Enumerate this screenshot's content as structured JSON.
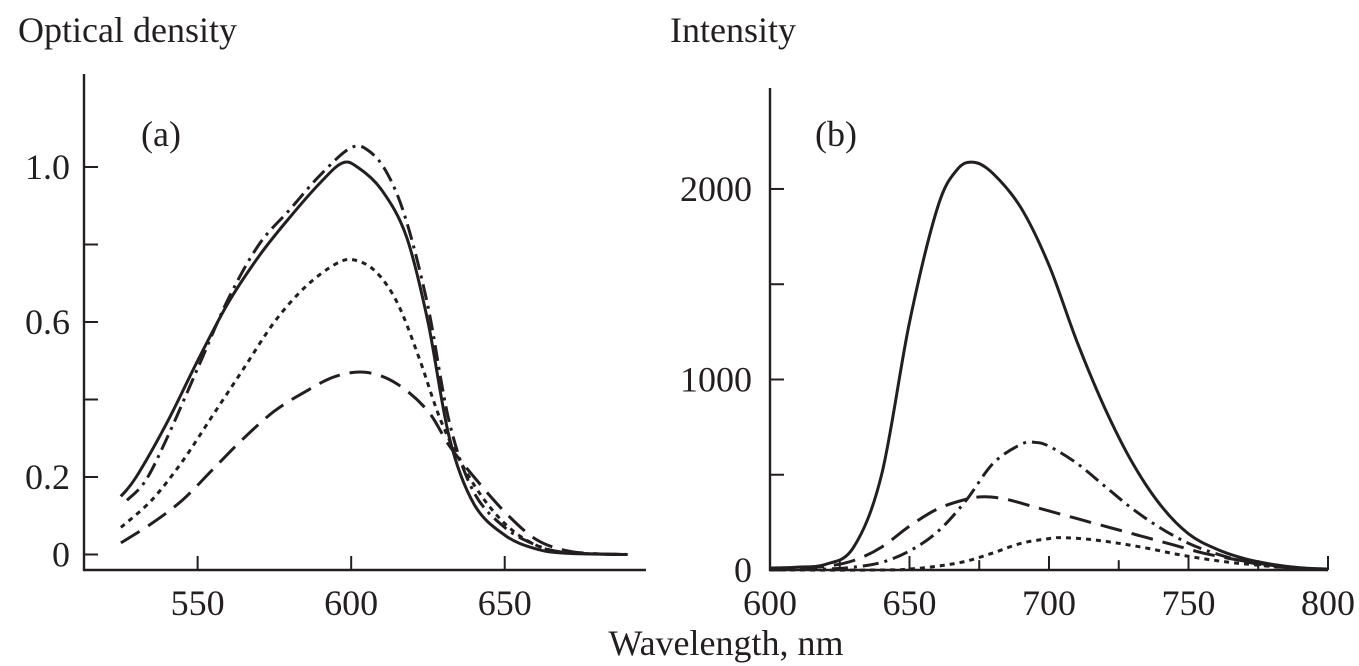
{
  "xlabel": "Wavelength, nm",
  "chart_data": [
    {
      "type": "line",
      "panel_label": "(a)",
      "title": "Optical density",
      "xlabel": "Wavelength, nm",
      "ylabel": "Optical density",
      "xlim": [
        513,
        696
      ],
      "ylim": [
        -0.04,
        1.24
      ],
      "xticks": [
        550,
        600,
        650
      ],
      "xtick_labels": [
        "550",
        "600",
        "650"
      ],
      "xminor": [],
      "yticks": [
        0,
        0.2,
        0.6,
        1.0
      ],
      "ytick_labels": [
        "0",
        "0.2",
        "0.6",
        "1.0"
      ],
      "yminor": [
        0.4,
        0.8
      ],
      "grid": false,
      "series": [
        {
          "style": "solid",
          "points": [
            [
              525,
              0.15
            ],
            [
              530,
              0.2
            ],
            [
              540,
              0.34
            ],
            [
              550,
              0.5
            ],
            [
              560,
              0.65
            ],
            [
              570,
              0.77
            ],
            [
              580,
              0.87
            ],
            [
              590,
              0.96
            ],
            [
              597,
              1.01
            ],
            [
              602,
              1.0
            ],
            [
              610,
              0.94
            ],
            [
              618,
              0.82
            ],
            [
              625,
              0.6
            ],
            [
              632,
              0.3
            ],
            [
              640,
              0.13
            ],
            [
              650,
              0.05
            ],
            [
              660,
              0.015
            ],
            [
              670,
              0.003
            ],
            [
              690,
              0.0
            ]
          ]
        },
        {
          "style": "dashdot",
          "points": [
            [
              527,
              0.14
            ],
            [
              533,
              0.19
            ],
            [
              540,
              0.3
            ],
            [
              550,
              0.48
            ],
            [
              560,
              0.66
            ],
            [
              570,
              0.8
            ],
            [
              580,
              0.89
            ],
            [
              590,
              0.98
            ],
            [
              600,
              1.05
            ],
            [
              606,
              1.04
            ],
            [
              612,
              0.98
            ],
            [
              618,
              0.86
            ],
            [
              625,
              0.64
            ],
            [
              632,
              0.34
            ],
            [
              640,
              0.16
            ],
            [
              650,
              0.07
            ],
            [
              660,
              0.025
            ],
            [
              670,
              0.005
            ],
            [
              690,
              0.0
            ]
          ]
        },
        {
          "style": "dotted",
          "points": [
            [
              525,
              0.07
            ],
            [
              535,
              0.14
            ],
            [
              545,
              0.24
            ],
            [
              555,
              0.36
            ],
            [
              565,
              0.48
            ],
            [
              575,
              0.6
            ],
            [
              585,
              0.69
            ],
            [
              595,
              0.75
            ],
            [
              601,
              0.76
            ],
            [
              608,
              0.73
            ],
            [
              615,
              0.65
            ],
            [
              622,
              0.51
            ],
            [
              630,
              0.33
            ],
            [
              640,
              0.18
            ],
            [
              650,
              0.08
            ],
            [
              660,
              0.025
            ],
            [
              670,
              0.005
            ],
            [
              690,
              0.0
            ]
          ]
        },
        {
          "style": "dashed",
          "points": [
            [
              525,
              0.03
            ],
            [
              535,
              0.08
            ],
            [
              545,
              0.14
            ],
            [
              555,
              0.22
            ],
            [
              565,
              0.3
            ],
            [
              575,
              0.37
            ],
            [
              585,
              0.42
            ],
            [
              595,
              0.46
            ],
            [
              605,
              0.47
            ],
            [
              615,
              0.44
            ],
            [
              625,
              0.37
            ],
            [
              632,
              0.28
            ],
            [
              640,
              0.2
            ],
            [
              650,
              0.11
            ],
            [
              660,
              0.04
            ],
            [
              670,
              0.01
            ],
            [
              680,
              0.002
            ],
            [
              690,
              0.0
            ]
          ]
        }
      ]
    },
    {
      "type": "line",
      "panel_label": "(b)",
      "title": "Intensity",
      "xlabel": "Wavelength, nm",
      "ylabel": "Intensity",
      "xlim": [
        600,
        800
      ],
      "ylim": [
        0,
        2530
      ],
      "xticks": [
        600,
        650,
        700,
        750,
        800
      ],
      "xtick_labels": [
        "600",
        "650",
        "700",
        "750",
        "800"
      ],
      "xminor": [
        625,
        675,
        725,
        775
      ],
      "yticks": [
        0,
        1000,
        2000
      ],
      "ytick_labels": [
        "0",
        "1000",
        "2000"
      ],
      "yminor": [
        500,
        1500
      ],
      "grid": false,
      "series": [
        {
          "style": "solid",
          "points": [
            [
              600,
              10
            ],
            [
              610,
              15
            ],
            [
              620,
              30
            ],
            [
              630,
              120
            ],
            [
              640,
              500
            ],
            [
              650,
              1300
            ],
            [
              660,
              1900
            ],
            [
              667,
              2100
            ],
            [
              673,
              2140
            ],
            [
              680,
              2080
            ],
            [
              690,
              1900
            ],
            [
              700,
              1600
            ],
            [
              710,
              1200
            ],
            [
              720,
              850
            ],
            [
              730,
              560
            ],
            [
              740,
              340
            ],
            [
              750,
              190
            ],
            [
              760,
              110
            ],
            [
              770,
              60
            ],
            [
              780,
              30
            ],
            [
              790,
              12
            ],
            [
              800,
              5
            ]
          ]
        },
        {
          "style": "dashdot",
          "points": [
            [
              600,
              0
            ],
            [
              620,
              5
            ],
            [
              630,
              15
            ],
            [
              640,
              40
            ],
            [
              650,
              100
            ],
            [
              660,
              200
            ],
            [
              670,
              360
            ],
            [
              680,
              560
            ],
            [
              690,
              660
            ],
            [
              695,
              670
            ],
            [
              700,
              650
            ],
            [
              710,
              560
            ],
            [
              720,
              440
            ],
            [
              730,
              320
            ],
            [
              740,
              220
            ],
            [
              750,
              140
            ],
            [
              760,
              85
            ],
            [
              770,
              45
            ],
            [
              780,
              20
            ],
            [
              790,
              8
            ],
            [
              800,
              3
            ]
          ]
        },
        {
          "style": "dashed",
          "points": [
            [
              600,
              0
            ],
            [
              620,
              20
            ],
            [
              630,
              50
            ],
            [
              640,
              120
            ],
            [
              650,
              230
            ],
            [
              660,
              320
            ],
            [
              670,
              370
            ],
            [
              677,
              385
            ],
            [
              685,
              370
            ],
            [
              695,
              330
            ],
            [
              705,
              290
            ],
            [
              715,
              250
            ],
            [
              725,
              210
            ],
            [
              735,
              170
            ],
            [
              745,
              130
            ],
            [
              755,
              90
            ],
            [
              765,
              60
            ],
            [
              775,
              35
            ],
            [
              785,
              15
            ],
            [
              795,
              5
            ],
            [
              800,
              2
            ]
          ]
        },
        {
          "style": "dotted",
          "points": [
            [
              600,
              0
            ],
            [
              640,
              0
            ],
            [
              650,
              5
            ],
            [
              660,
              20
            ],
            [
              670,
              45
            ],
            [
              680,
              90
            ],
            [
              690,
              140
            ],
            [
              700,
              165
            ],
            [
              705,
              170
            ],
            [
              715,
              160
            ],
            [
              725,
              140
            ],
            [
              735,
              115
            ],
            [
              745,
              85
            ],
            [
              755,
              60
            ],
            [
              765,
              40
            ],
            [
              775,
              25
            ],
            [
              785,
              12
            ],
            [
              795,
              5
            ],
            [
              800,
              2
            ]
          ]
        }
      ]
    }
  ]
}
